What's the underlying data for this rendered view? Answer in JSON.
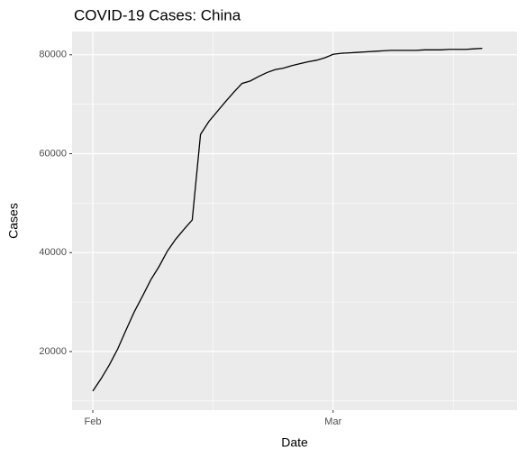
{
  "chart_data": {
    "type": "line",
    "title": "COVID-19 Cases: China",
    "xlabel": "Date",
    "ylabel": "Cases",
    "x": [
      0,
      1,
      2,
      3,
      4,
      5,
      6,
      7,
      8,
      9,
      10,
      11,
      12,
      13,
      14,
      15,
      16,
      17,
      18,
      19,
      20,
      21,
      22,
      23,
      24,
      25,
      26,
      27,
      28,
      29,
      30,
      31,
      32,
      33,
      34,
      35,
      36,
      37,
      38,
      39,
      40,
      41,
      42,
      43,
      44,
      45,
      46,
      47
    ],
    "series": [
      {
        "name": "China",
        "color": "#000000",
        "values": [
          12000,
          14500,
          17300,
          20500,
          24300,
          28000,
          31200,
          34500,
          37200,
          40300,
          42700,
          44700,
          46600,
          63900,
          66500,
          68500,
          70500,
          72400,
          74200,
          74700,
          75600,
          76400,
          77000,
          77300,
          77800,
          78200,
          78600,
          78900,
          79400,
          80100,
          80300,
          80400,
          80500,
          80600,
          80700,
          80800,
          80900,
          80900,
          80900,
          80900,
          81000,
          81000,
          81000,
          81100,
          81100,
          81100,
          81200,
          81300
        ]
      }
    ],
    "xlim": [
      -2.5,
      51.2
    ],
    "xticks": [
      {
        "value": 0,
        "label": "Feb"
      },
      {
        "value": 29,
        "label": "Mar"
      }
    ],
    "xminor": [
      14.5,
      43.5
    ],
    "ylim": [
      8150,
      84700
    ],
    "yticks": [
      20000,
      40000,
      60000,
      80000
    ],
    "yminor": [
      10000,
      30000,
      50000,
      70000
    ],
    "grid": true,
    "legend": false
  }
}
